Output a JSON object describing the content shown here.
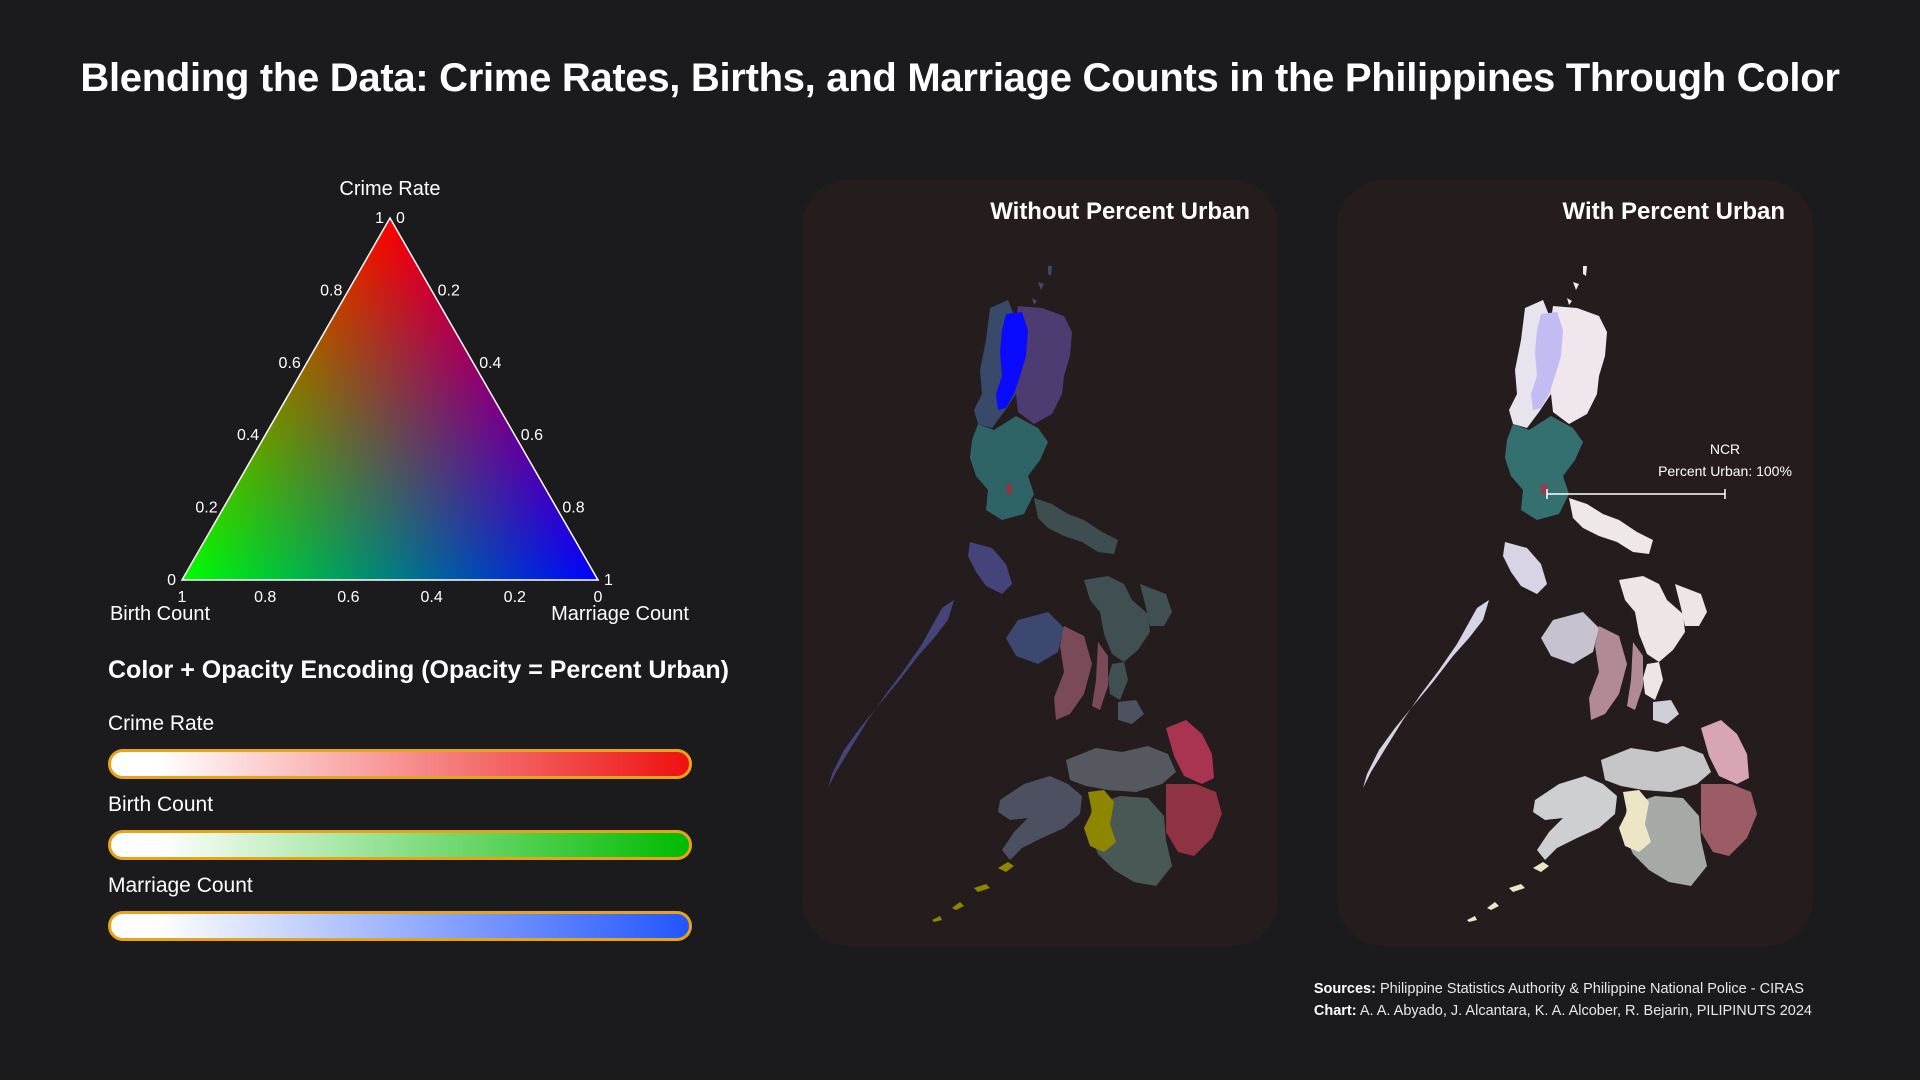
{
  "title": "Blending the Data: Crime Rates, Births, and Marriage Counts in the Philippines Through Color",
  "ternary": {
    "axes": {
      "top": "Crime Rate",
      "left": "Birth Count",
      "right": "Marriage Count"
    },
    "left_edge_ticks": [
      "0",
      "0.2",
      "0.4",
      "0.6",
      "0.8",
      "1"
    ],
    "right_edge_ticks": [
      "0",
      "0.2",
      "0.4",
      "0.6",
      "0.8",
      "1"
    ],
    "bottom_edge_ticks": [
      "1",
      "0.8",
      "0.6",
      "0.4",
      "0.2",
      "0"
    ],
    "colors": {
      "crime": "#ff0000",
      "birth": "#00ff00",
      "marriage": "#0000ff"
    }
  },
  "encoding": {
    "title": "Color + Opacity Encoding (Opacity = Percent Urban)",
    "scales": [
      {
        "label": "Crime Rate",
        "end_color": "#ee1111"
      },
      {
        "label": "Birth Count",
        "end_color": "#00bb00"
      },
      {
        "label": "Marriage Count",
        "end_color": "#2255ff"
      }
    ],
    "border_color": "#e8a317"
  },
  "panels": [
    {
      "title": "Without Percent Urban"
    },
    {
      "title": "With Percent Urban"
    }
  ],
  "annotation": {
    "name": "NCR",
    "text": "Percent Urban: 100%"
  },
  "sources": {
    "sources_label": "Sources:",
    "sources_text": "Philippine Statistics Authority & Philippine National Police - CIRAS",
    "chart_label": "Chart:",
    "chart_text": "A. A. Abyado, J. Alcantara, K. A. Alcober, R. Bejarin, PILIPINUTS 2024"
  }
}
